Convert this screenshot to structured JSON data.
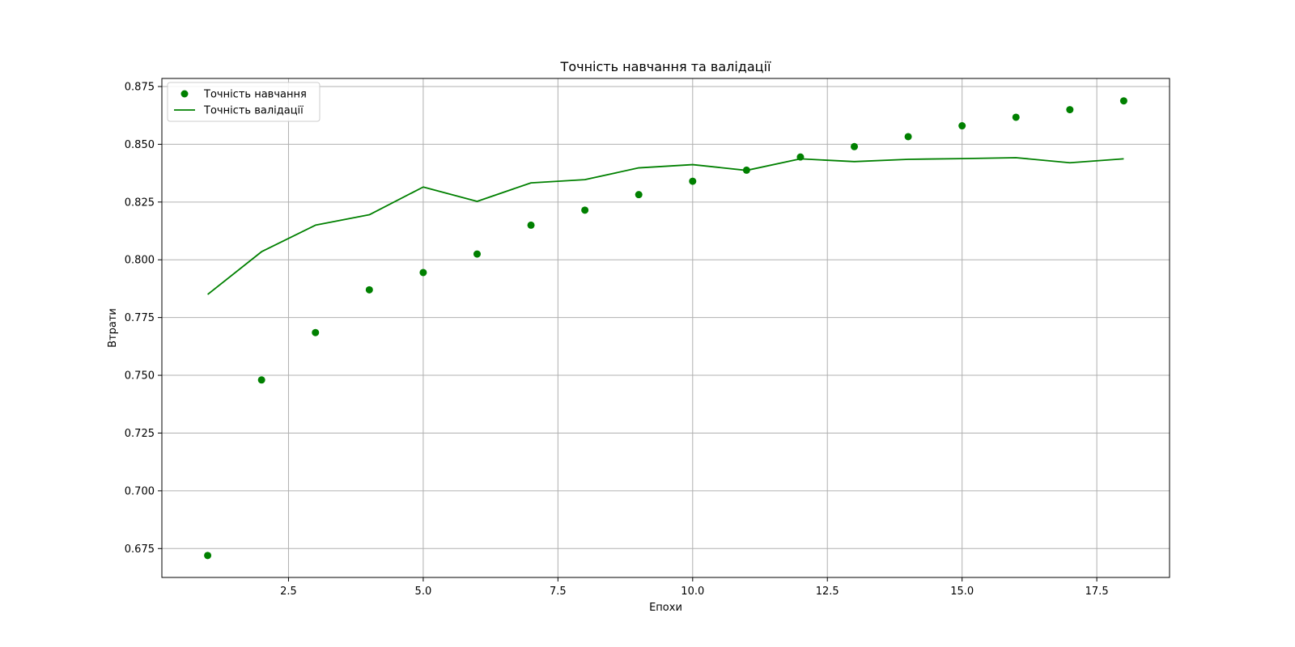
{
  "chart_data": {
    "type": "line",
    "title": "Точність навчання та валідації",
    "xlabel": "Епохи",
    "ylabel": "Втрати",
    "xlim": [
      0.15,
      18.85
    ],
    "ylim": [
      0.6625,
      0.8785
    ],
    "x_ticks": [
      2.5,
      5.0,
      7.5,
      10.0,
      12.5,
      15.0,
      17.5
    ],
    "x_tick_labels": [
      "2.5",
      "5.0",
      "7.5",
      "10.0",
      "12.5",
      "15.0",
      "17.5"
    ],
    "y_ticks": [
      0.675,
      0.7,
      0.725,
      0.75,
      0.775,
      0.8,
      0.825,
      0.85,
      0.875
    ],
    "y_tick_labels": [
      "0.675",
      "0.700",
      "0.725",
      "0.750",
      "0.775",
      "0.800",
      "0.825",
      "0.850",
      "0.875"
    ],
    "grid": true,
    "legend_position": "top-left",
    "x": [
      1,
      2,
      3,
      4,
      5,
      6,
      7,
      8,
      9,
      10,
      11,
      12,
      13,
      14,
      15,
      16,
      17,
      18
    ],
    "series": [
      {
        "name": "Точність навчання",
        "style": "points",
        "color": "#008000",
        "values": [
          0.672,
          0.748,
          0.7685,
          0.787,
          0.7945,
          0.8025,
          0.815,
          0.8215,
          0.8282,
          0.834,
          0.8388,
          0.8445,
          0.849,
          0.8533,
          0.858,
          0.8617,
          0.865,
          0.8688
        ]
      },
      {
        "name": "Точність валідації",
        "style": "line",
        "color": "#008000",
        "values": [
          0.785,
          0.8035,
          0.815,
          0.8195,
          0.8315,
          0.8253,
          0.8333,
          0.8347,
          0.8398,
          0.8412,
          0.8387,
          0.8437,
          0.8425,
          0.8435,
          0.8438,
          0.8442,
          0.842,
          0.8437
        ]
      }
    ]
  }
}
